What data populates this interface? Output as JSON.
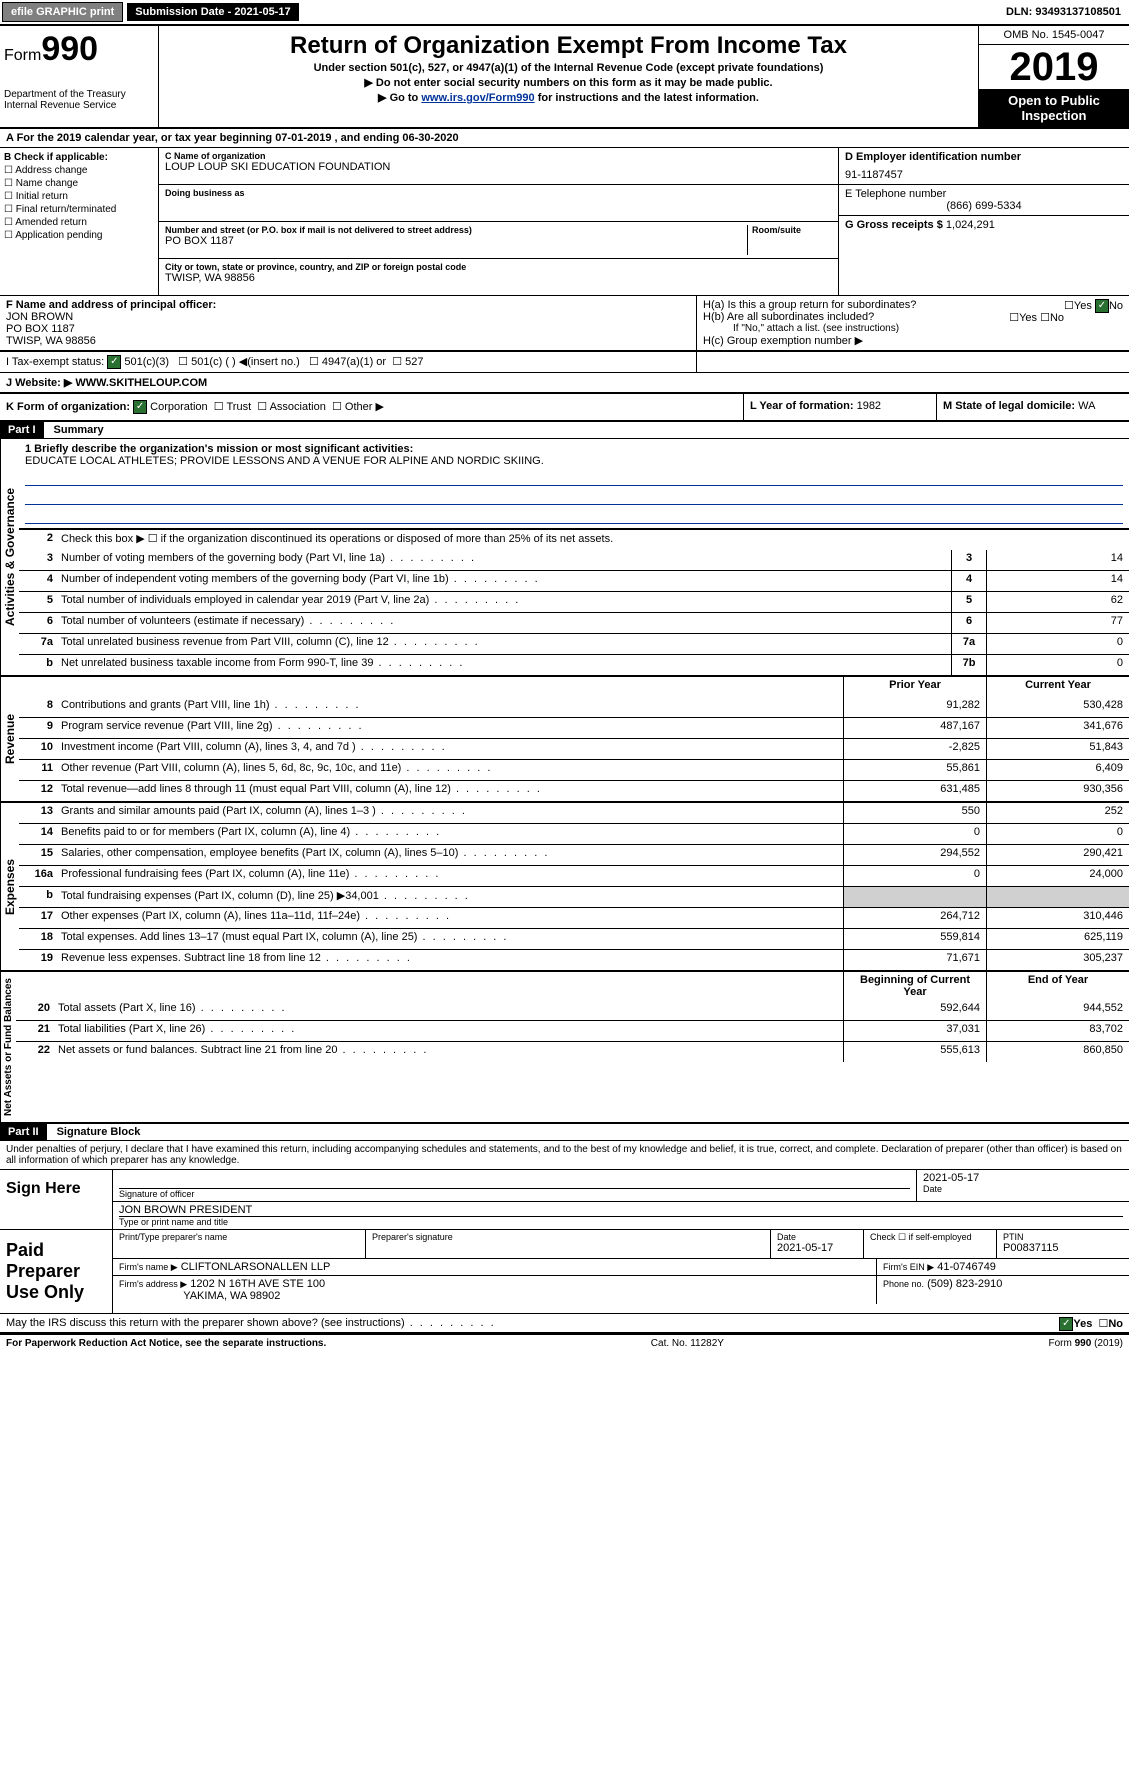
{
  "topbar": {
    "efile": "efile GRAPHIC print",
    "submission_label": "Submission Date - 2021-05-17",
    "dln": "DLN: 93493137108501"
  },
  "header": {
    "form_label": "Form",
    "form_num": "990",
    "dept1": "Department of the Treasury",
    "dept2": "Internal Revenue Service",
    "title": "Return of Organization Exempt From Income Tax",
    "subtitle": "Under section 501(c), 527, or 4947(a)(1) of the Internal Revenue Code (except private foundations)",
    "note1": "▶ Do not enter social security numbers on this form as it may be made public.",
    "note2_pre": "▶ Go to ",
    "note2_link": "www.irs.gov/Form990",
    "note2_post": " for instructions and the latest information.",
    "omb": "OMB No. 1545-0047",
    "year": "2019",
    "open": "Open to Public Inspection"
  },
  "period": "A For the 2019 calendar year, or tax year beginning 07-01-2019    , and ending 06-30-2020",
  "section_b": {
    "check_label": "B Check if applicable:",
    "opts": [
      "☐ Address change",
      "☐ Name change",
      "☐ Initial return",
      "☐ Final return/terminated",
      "☐ Amended return",
      "☐ Application pending"
    ],
    "c_label": "C Name of organization",
    "c_val": "LOUP LOUP SKI EDUCATION FOUNDATION",
    "dba_label": "Doing business as",
    "addr_label": "Number and street (or P.O. box if mail is not delivered to street address)",
    "room_label": "Room/suite",
    "addr_val": "PO BOX 1187",
    "city_label": "City or town, state or province, country, and ZIP or foreign postal code",
    "city_val": "TWISP, WA  98856",
    "d_label": "D Employer identification number",
    "d_val": "91-1187457",
    "e_label": "E Telephone number",
    "e_val": "(866) 699-5334",
    "g_label": "G Gross receipts $",
    "g_val": "1,024,291"
  },
  "section_f": {
    "f_label": "F  Name and address of principal officer:",
    "f_name": "JON BROWN",
    "f_addr1": "PO BOX 1187",
    "f_addr2": "TWISP, WA  98856",
    "ha": "H(a)  Is this a group return for subordinates?",
    "hb": "H(b)  Are all subordinates included?",
    "hb_note": "If \"No,\" attach a list. (see instructions)",
    "hc": "H(c)  Group exemption number ▶",
    "yes": "Yes",
    "no": "No"
  },
  "section_i": {
    "label": "I    Tax-exempt status:",
    "o1": "501(c)(3)",
    "o2": "501(c) (  ) ◀(insert no.)",
    "o3": "4947(a)(1) or",
    "o4": "527"
  },
  "section_j": {
    "label": "J   Website: ▶",
    "val": "  WWW.SKITHELOUP.COM"
  },
  "section_k": {
    "label": "K Form of organization:",
    "corp": "Corporation",
    "trust": "Trust",
    "assoc": "Association",
    "other": "Other ▶",
    "l_label": "L Year of formation:",
    "l_val": "1982",
    "m_label": "M State of legal domicile:",
    "m_val": "WA"
  },
  "part1": {
    "header": "Part I",
    "title": "Summary",
    "q1": "1  Briefly describe the organization's mission or most significant activities:",
    "q1_val": "EDUCATE LOCAL ATHLETES; PROVIDE LESSONS AND A VENUE FOR ALPINE AND NORDIC SKIING.",
    "q2": "Check this box ▶ ☐  if the organization discontinued its operations or disposed of more than 25% of its net assets.",
    "vlabels": {
      "gov": "Activities & Governance",
      "rev": "Revenue",
      "exp": "Expenses",
      "net": "Net Assets or Fund Balances"
    },
    "lines_gov": [
      {
        "n": "3",
        "d": "Number of voting members of the governing body (Part VI, line 1a)",
        "box": "3",
        "v": "14"
      },
      {
        "n": "4",
        "d": "Number of independent voting members of the governing body (Part VI, line 1b)",
        "box": "4",
        "v": "14"
      },
      {
        "n": "5",
        "d": "Total number of individuals employed in calendar year 2019 (Part V, line 2a)",
        "box": "5",
        "v": "62"
      },
      {
        "n": "6",
        "d": "Total number of volunteers (estimate if necessary)",
        "box": "6",
        "v": "77"
      },
      {
        "n": "7a",
        "d": "Total unrelated business revenue from Part VIII, column (C), line 12",
        "box": "7a",
        "v": "0"
      },
      {
        "n": "b",
        "d": "Net unrelated business taxable income from Form 990-T, line 39",
        "box": "7b",
        "v": "0"
      }
    ],
    "col_prior": "Prior Year",
    "col_current": "Current Year",
    "col_begin": "Beginning of Current Year",
    "col_end": "End of Year",
    "lines_rev": [
      {
        "n": "8",
        "d": "Contributions and grants (Part VIII, line 1h)",
        "p": "91,282",
        "c": "530,428"
      },
      {
        "n": "9",
        "d": "Program service revenue (Part VIII, line 2g)",
        "p": "487,167",
        "c": "341,676"
      },
      {
        "n": "10",
        "d": "Investment income (Part VIII, column (A), lines 3, 4, and 7d )",
        "p": "-2,825",
        "c": "51,843"
      },
      {
        "n": "11",
        "d": "Other revenue (Part VIII, column (A), lines 5, 6d, 8c, 9c, 10c, and 11e)",
        "p": "55,861",
        "c": "6,409"
      },
      {
        "n": "12",
        "d": "Total revenue—add lines 8 through 11 (must equal Part VIII, column (A), line 12)",
        "p": "631,485",
        "c": "930,356"
      }
    ],
    "lines_exp": [
      {
        "n": "13",
        "d": "Grants and similar amounts paid (Part IX, column (A), lines 1–3 )",
        "p": "550",
        "c": "252"
      },
      {
        "n": "14",
        "d": "Benefits paid to or for members (Part IX, column (A), line 4)",
        "p": "0",
        "c": "0"
      },
      {
        "n": "15",
        "d": "Salaries, other compensation, employee benefits (Part IX, column (A), lines 5–10)",
        "p": "294,552",
        "c": "290,421"
      },
      {
        "n": "16a",
        "d": "Professional fundraising fees (Part IX, column (A), line 11e)",
        "p": "0",
        "c": "24,000"
      },
      {
        "n": "b",
        "d": "Total fundraising expenses (Part IX, column (D), line 25) ▶34,001",
        "p": "",
        "c": "",
        "shade": true
      },
      {
        "n": "17",
        "d": "Other expenses (Part IX, column (A), lines 11a–11d, 11f–24e)",
        "p": "264,712",
        "c": "310,446"
      },
      {
        "n": "18",
        "d": "Total expenses. Add lines 13–17 (must equal Part IX, column (A), line 25)",
        "p": "559,814",
        "c": "625,119"
      },
      {
        "n": "19",
        "d": "Revenue less expenses. Subtract line 18 from line 12",
        "p": "71,671",
        "c": "305,237"
      }
    ],
    "lines_net": [
      {
        "n": "20",
        "d": "Total assets (Part X, line 16)",
        "p": "592,644",
        "c": "944,552"
      },
      {
        "n": "21",
        "d": "Total liabilities (Part X, line 26)",
        "p": "37,031",
        "c": "83,702"
      },
      {
        "n": "22",
        "d": "Net assets or fund balances. Subtract line 21 from line 20",
        "p": "555,613",
        "c": "860,850"
      }
    ]
  },
  "part2": {
    "header": "Part II",
    "title": "Signature Block",
    "declaration": "Under penalties of perjury, I declare that I have examined this return, including accompanying schedules and statements, and to the best of my knowledge and belief, it is true, correct, and complete. Declaration of preparer (other than officer) is based on all information of which preparer has any knowledge.",
    "sign_here": "Sign Here",
    "sig_officer": "Signature of officer",
    "sig_date": "2021-05-17",
    "date_label": "Date",
    "officer_name": "JON BROWN  PRESIDENT",
    "name_title": "Type or print name and title",
    "paid_label": "Paid Preparer Use Only",
    "prep_name_label": "Print/Type preparer's name",
    "prep_sig_label": "Preparer's signature",
    "prep_date": "2021-05-17",
    "check_self": "Check ☐ if self-employed",
    "ptin_label": "PTIN",
    "ptin": "P00837115",
    "firm_name_label": "Firm's name    ▶",
    "firm_name": "CLIFTONLARSONALLEN LLP",
    "firm_ein_label": "Firm's EIN ▶",
    "firm_ein": "41-0746749",
    "firm_addr_label": "Firm's address ▶",
    "firm_addr1": "1202 N 16TH AVE STE 100",
    "firm_addr2": "YAKIMA, WA  98902",
    "phone_label": "Phone no.",
    "phone": "(509) 823-2910",
    "discuss": "May the IRS discuss this return with the preparer shown above? (see instructions)"
  },
  "footer": {
    "left": "For Paperwork Reduction Act Notice, see the separate instructions.",
    "mid": "Cat. No. 11282Y",
    "right": "Form 990 (2019)"
  }
}
